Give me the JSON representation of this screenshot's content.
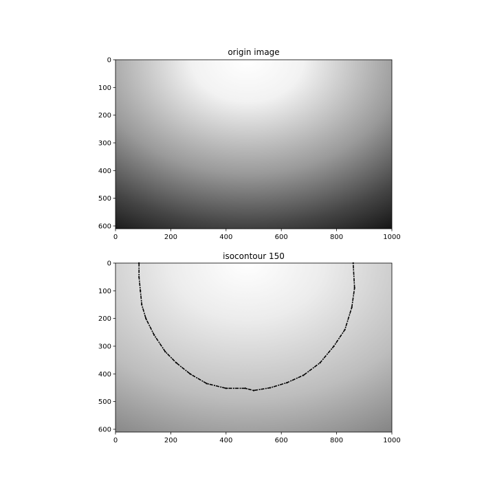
{
  "chart_data": [
    {
      "type": "heatmap",
      "title": "origin image",
      "colormap": "gray",
      "xlim": [
        0,
        1000
      ],
      "ylim": [
        610,
        0
      ],
      "xticks": [
        0,
        200,
        400,
        600,
        800,
        1000
      ],
      "yticks": [
        0,
        100,
        200,
        300,
        400,
        500,
        600
      ],
      "xtick_labels": [
        "0",
        "200",
        "400",
        "600",
        "800",
        "1000"
      ],
      "ytick_labels": [
        "0",
        "100",
        "200",
        "300",
        "400",
        "500",
        "600"
      ],
      "bright_center": [
        480,
        0
      ]
    },
    {
      "type": "heatmap",
      "title": "isocontour 150",
      "colormap": "gray",
      "xlim": [
        0,
        1000
      ],
      "ylim": [
        610,
        0
      ],
      "xticks": [
        0,
        200,
        400,
        600,
        800,
        1000
      ],
      "yticks": [
        0,
        100,
        200,
        300,
        400,
        500,
        600
      ],
      "xtick_labels": [
        "0",
        "200",
        "400",
        "600",
        "800",
        "1000"
      ],
      "ytick_labels": [
        "0",
        "100",
        "200",
        "300",
        "400",
        "500",
        "600"
      ],
      "bright_center": [
        480,
        0
      ],
      "contour_level": 150,
      "contour_color": "#000000",
      "contour_points": [
        [
          85,
          0
        ],
        [
          85,
          50
        ],
        [
          90,
          100
        ],
        [
          95,
          150
        ],
        [
          110,
          200
        ],
        [
          140,
          260
        ],
        [
          180,
          320
        ],
        [
          220,
          360
        ],
        [
          270,
          400
        ],
        [
          330,
          435
        ],
        [
          400,
          452
        ],
        [
          470,
          452
        ],
        [
          500,
          460
        ],
        [
          560,
          450
        ],
        [
          620,
          432
        ],
        [
          680,
          405
        ],
        [
          740,
          360
        ],
        [
          790,
          300
        ],
        [
          830,
          240
        ],
        [
          855,
          160
        ],
        [
          865,
          90
        ],
        [
          860,
          0
        ]
      ]
    }
  ]
}
